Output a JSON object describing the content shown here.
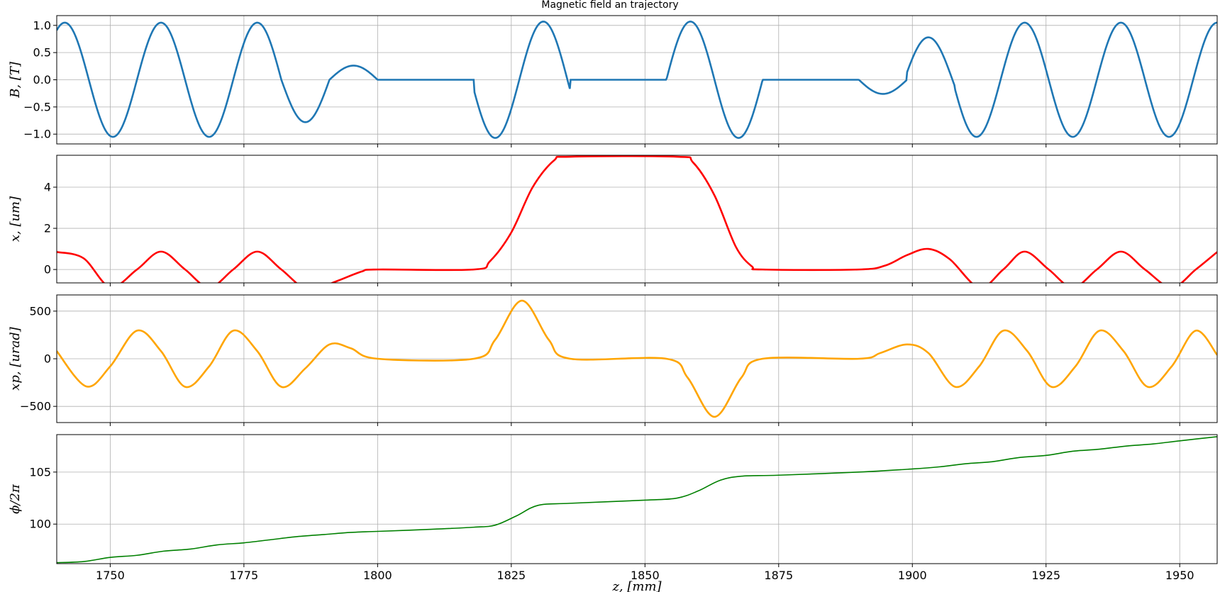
{
  "title": "Magnetic field an trajectory",
  "chart_data": [
    {
      "type": "line",
      "ylabel": "B, [T]",
      "color": "#1f77b4",
      "line_width": "thick",
      "xlim": [
        1740,
        1957
      ],
      "ylim": [
        -1.18,
        1.18
      ],
      "yticks": [
        -1.0,
        -0.5,
        0.0,
        0.5,
        1.0
      ],
      "ytick_labels": [
        "−1.0",
        "−0.5",
        "0.0",
        "0.5",
        "1.0"
      ],
      "show_xtick_labels": false,
      "grid": true,
      "segments": [
        {
          "kind": "sin",
          "z0": 1740,
          "z1": 1782,
          "amp": 1.05,
          "period": 18.0,
          "center": 1741.5
        },
        {
          "kind": "sin",
          "z0": 1782,
          "z1": 1791,
          "amp": 0.78,
          "period": 18.0,
          "center": 1741.5,
          "ramp_to_zero_at": 1791
        },
        {
          "kind": "sin",
          "z0": 1791,
          "z1": 1800,
          "amp": 0.26,
          "period": 18.0,
          "center": 1795.5,
          "halfwave": true
        },
        {
          "kind": "flat",
          "z0": 1800,
          "z1": 1818,
          "value": 0
        },
        {
          "kind": "sin",
          "z0": 1818,
          "z1": 1836,
          "amp": 1.07,
          "period": 18.0,
          "center": 1831.0
        },
        {
          "kind": "flat",
          "z0": 1836,
          "z1": 1854,
          "value": 0
        },
        {
          "kind": "sin",
          "z0": 1854,
          "z1": 1872,
          "amp": 1.07,
          "period": 18.0,
          "center": 1858.5
        },
        {
          "kind": "flat",
          "z0": 1872,
          "z1": 1890,
          "value": 0
        },
        {
          "kind": "sin",
          "z0": 1890,
          "z1": 1899,
          "amp": -0.26,
          "period": 18.0,
          "center": 1894.5,
          "halfwave": true
        },
        {
          "kind": "sin",
          "z0": 1899,
          "z1": 1908,
          "amp": 0.78,
          "period": 18.0,
          "center": 1903.0
        },
        {
          "kind": "sin",
          "z0": 1908,
          "z1": 1957,
          "amp": 1.05,
          "period": 18.0,
          "center": 1921.0
        }
      ]
    },
    {
      "type": "line",
      "ylabel": "x, [um]",
      "color": "#ff0000",
      "line_width": "thick",
      "xlim": [
        1740,
        1957
      ],
      "ylim": [
        -0.65,
        5.55
      ],
      "yticks": [
        0,
        2,
        4
      ],
      "ytick_labels": [
        "0",
        "2",
        "4"
      ],
      "show_xtick_labels": false,
      "grid": true,
      "points": [
        [
          1740,
          0.85
        ],
        [
          1745,
          0.55
        ],
        [
          1750,
          -0.85
        ],
        [
          1755,
          0.0
        ],
        [
          1759.5,
          0.87
        ],
        [
          1764,
          0.0
        ],
        [
          1768.5,
          -0.87
        ],
        [
          1773,
          0.0
        ],
        [
          1777.5,
          0.87
        ],
        [
          1782,
          0.0
        ],
        [
          1787,
          -1.0
        ],
        [
          1792,
          -0.6
        ],
        [
          1797,
          -0.1
        ],
        [
          1800,
          0.0
        ],
        [
          1818,
          0.0
        ],
        [
          1821,
          0.4
        ],
        [
          1825,
          1.8
        ],
        [
          1829,
          4.0
        ],
        [
          1833,
          5.3
        ],
        [
          1836,
          5.48
        ],
        [
          1856,
          5.48
        ],
        [
          1859,
          5.2
        ],
        [
          1863,
          3.6
        ],
        [
          1867,
          1.1
        ],
        [
          1870,
          0.15
        ],
        [
          1872,
          0.0
        ],
        [
          1890,
          0.0
        ],
        [
          1895,
          0.2
        ],
        [
          1899,
          0.7
        ],
        [
          1903,
          1.0
        ],
        [
          1907,
          0.5
        ],
        [
          1912.5,
          -0.87
        ],
        [
          1917,
          0.0
        ],
        [
          1921,
          0.87
        ],
        [
          1925.5,
          0.0
        ],
        [
          1930,
          -0.87
        ],
        [
          1934.5,
          0.0
        ],
        [
          1939,
          0.87
        ],
        [
          1943.5,
          0.0
        ],
        [
          1948.5,
          -0.87
        ],
        [
          1953,
          0.0
        ],
        [
          1957,
          0.85
        ]
      ],
      "smooth": true
    },
    {
      "type": "line",
      "ylabel": "xp, [urad]",
      "color": "#ffa500",
      "line_width": "thick",
      "xlim": [
        1740,
        1957
      ],
      "ylim": [
        -670,
        670
      ],
      "yticks": [
        -500,
        0,
        500
      ],
      "ytick_labels": [
        "−500",
        "0",
        "500"
      ],
      "show_xtick_labels": false,
      "grid": true,
      "points": [
        [
          1740,
          80
        ],
        [
          1745.5,
          -290
        ],
        [
          1750,
          -80
        ],
        [
          1755,
          295
        ],
        [
          1759.5,
          80
        ],
        [
          1764,
          -295
        ],
        [
          1768.5,
          -80
        ],
        [
          1773,
          295
        ],
        [
          1777.5,
          80
        ],
        [
          1782,
          -295
        ],
        [
          1786.5,
          -100
        ],
        [
          1791,
          150
        ],
        [
          1795,
          110
        ],
        [
          1800,
          0
        ],
        [
          1818,
          0
        ],
        [
          1822,
          200
        ],
        [
          1827,
          610
        ],
        [
          1832,
          200
        ],
        [
          1836,
          0
        ],
        [
          1854,
          0
        ],
        [
          1858,
          -200
        ],
        [
          1863,
          -610
        ],
        [
          1868,
          -200
        ],
        [
          1872,
          0
        ],
        [
          1890,
          0
        ],
        [
          1894,
          60
        ],
        [
          1899,
          150
        ],
        [
          1903,
          60
        ],
        [
          1908,
          -295
        ],
        [
          1912.5,
          -80
        ],
        [
          1917,
          295
        ],
        [
          1921.5,
          80
        ],
        [
          1926,
          -295
        ],
        [
          1930.5,
          -80
        ],
        [
          1935,
          295
        ],
        [
          1939.5,
          80
        ],
        [
          1944,
          -295
        ],
        [
          1948.5,
          -80
        ],
        [
          1953,
          295
        ],
        [
          1957,
          40
        ]
      ],
      "smooth": true
    },
    {
      "type": "line",
      "ylabel": "ϕ/2π",
      "xlabel": "z, [mm]",
      "color": "#008000",
      "line_width": "thin",
      "xlim": [
        1740,
        1957
      ],
      "ylim": [
        96.2,
        108.6
      ],
      "yticks": [
        100,
        105
      ],
      "ytick_labels": [
        "100",
        "105"
      ],
      "xticks": [
        1750,
        1775,
        1800,
        1825,
        1850,
        1875,
        1900,
        1925,
        1950
      ],
      "xtick_labels": [
        "1750",
        "1775",
        "1800",
        "1825",
        "1850",
        "1875",
        "1900",
        "1925",
        "1950"
      ],
      "show_xtick_labels": true,
      "grid": true,
      "points": [
        [
          1740,
          96.3
        ],
        [
          1745,
          96.4
        ],
        [
          1750,
          96.8
        ],
        [
          1755,
          97.0
        ],
        [
          1760,
          97.4
        ],
        [
          1765,
          97.6
        ],
        [
          1770,
          98.0
        ],
        [
          1775,
          98.2
        ],
        [
          1780,
          98.5
        ],
        [
          1785,
          98.8
        ],
        [
          1790,
          99.0
        ],
        [
          1795,
          99.2
        ],
        [
          1800,
          99.3
        ],
        [
          1810,
          99.5
        ],
        [
          1818,
          99.7
        ],
        [
          1822,
          99.9
        ],
        [
          1826,
          100.8
        ],
        [
          1830,
          101.8
        ],
        [
          1836,
          102.0
        ],
        [
          1850,
          102.3
        ],
        [
          1856,
          102.5
        ],
        [
          1860,
          103.2
        ],
        [
          1864,
          104.2
        ],
        [
          1868,
          104.6
        ],
        [
          1875,
          104.7
        ],
        [
          1890,
          105.0
        ],
        [
          1900,
          105.3
        ],
        [
          1905,
          105.5
        ],
        [
          1910,
          105.8
        ],
        [
          1915,
          106.0
        ],
        [
          1920,
          106.4
        ],
        [
          1925,
          106.6
        ],
        [
          1930,
          107.0
        ],
        [
          1935,
          107.2
        ],
        [
          1940,
          107.5
        ],
        [
          1945,
          107.7
        ],
        [
          1950,
          108.0
        ],
        [
          1957,
          108.4
        ]
      ],
      "smooth": true
    }
  ]
}
